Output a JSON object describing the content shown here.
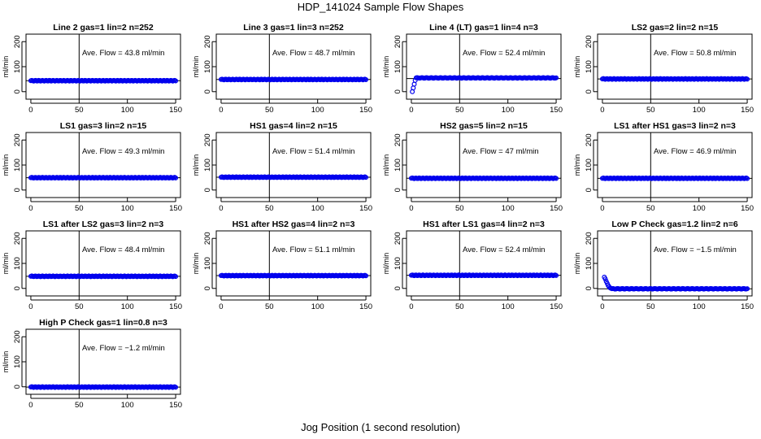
{
  "page": {
    "title": "HDP_141024  Sample Flow Shapes",
    "xlabel": "Jog Position (1 second resolution)"
  },
  "style": {
    "point_color": "#0000ee",
    "line_color": "#000000"
  },
  "chart_data": [
    {
      "type": "scatter",
      "title": "Line 2 gas=1 lin=2 n=252",
      "ylabel": "ml/min",
      "annotation": "Ave. Flow = 43.8  ml/min",
      "xlim": [
        0,
        150
      ],
      "ylim": [
        0,
        200
      ],
      "xticks": [
        0,
        50,
        100,
        150
      ],
      "yticks": [
        0,
        100,
        200
      ],
      "hline": 43.8,
      "vline": 50,
      "x": [
        0,
        150
      ],
      "y": [
        43.8,
        43.8
      ]
    },
    {
      "type": "scatter",
      "title": "Line 3 gas=1 lin=3 n=252",
      "ylabel": "ml/min",
      "annotation": "Ave. Flow = 48.7  ml/min",
      "xlim": [
        0,
        150
      ],
      "ylim": [
        0,
        200
      ],
      "xticks": [
        0,
        50,
        100,
        150
      ],
      "yticks": [
        0,
        100,
        200
      ],
      "hline": 48.7,
      "vline": 50,
      "x": [
        0,
        150
      ],
      "y": [
        48.7,
        48.7
      ]
    },
    {
      "type": "scatter",
      "title": "Line 4 (LT) gas=1 lin=4 n=3",
      "ylabel": "ml/min",
      "annotation": "Ave. Flow = 52.4  ml/min",
      "xlim": [
        0,
        150
      ],
      "ylim": [
        0,
        200
      ],
      "xticks": [
        0,
        50,
        100,
        150
      ],
      "yticks": [
        0,
        100,
        200
      ],
      "hline": 52.4,
      "vline": 50,
      "x": [
        1,
        2,
        3,
        4,
        5,
        150
      ],
      "y": [
        0,
        15,
        30,
        45,
        55,
        55
      ]
    },
    {
      "type": "scatter",
      "title": "LS2 gas=2 lin=2 n=15",
      "ylabel": "ml/min",
      "annotation": "Ave. Flow = 50.8  ml/min",
      "xlim": [
        0,
        150
      ],
      "ylim": [
        0,
        200
      ],
      "xticks": [
        0,
        50,
        100,
        150
      ],
      "yticks": [
        0,
        100,
        200
      ],
      "hline": 50.8,
      "vline": 50,
      "x": [
        0,
        150
      ],
      "y": [
        50.8,
        50.8
      ]
    },
    {
      "type": "scatter",
      "title": "LS1 gas=3 lin=2 n=15",
      "ylabel": "ml/min",
      "annotation": "Ave. Flow = 49.3  ml/min",
      "xlim": [
        0,
        150
      ],
      "ylim": [
        0,
        200
      ],
      "xticks": [
        0,
        50,
        100,
        150
      ],
      "yticks": [
        0,
        100,
        200
      ],
      "hline": 49.3,
      "vline": 50,
      "x": [
        0,
        150
      ],
      "y": [
        49.3,
        49.3
      ]
    },
    {
      "type": "scatter",
      "title": "HS1 gas=4 lin=2 n=15",
      "ylabel": "ml/min",
      "annotation": "Ave. Flow = 51.4  ml/min",
      "xlim": [
        0,
        150
      ],
      "ylim": [
        0,
        200
      ],
      "xticks": [
        0,
        50,
        100,
        150
      ],
      "yticks": [
        0,
        100,
        200
      ],
      "hline": 51.4,
      "vline": 50,
      "x": [
        0,
        150
      ],
      "y": [
        51.4,
        51.4
      ]
    },
    {
      "type": "scatter",
      "title": "HS2 gas=5 lin=2 n=15",
      "ylabel": "ml/min",
      "annotation": "Ave. Flow = 47  ml/min",
      "xlim": [
        0,
        150
      ],
      "ylim": [
        0,
        200
      ],
      "xticks": [
        0,
        50,
        100,
        150
      ],
      "yticks": [
        0,
        100,
        200
      ],
      "hline": 47,
      "vline": 50,
      "x": [
        0,
        150
      ],
      "y": [
        47,
        47
      ]
    },
    {
      "type": "scatter",
      "title": "LS1 after HS1 gas=3 lin=2 n=3",
      "ylabel": "ml/min",
      "annotation": "Ave. Flow = 46.9  ml/min",
      "xlim": [
        0,
        150
      ],
      "ylim": [
        0,
        200
      ],
      "xticks": [
        0,
        50,
        100,
        150
      ],
      "yticks": [
        0,
        100,
        200
      ],
      "hline": 46.9,
      "vline": 50,
      "x": [
        0,
        150
      ],
      "y": [
        46.9,
        46.9
      ]
    },
    {
      "type": "scatter",
      "title": "LS1 after LS2 gas=3 lin=2 n=3",
      "ylabel": "ml/min",
      "annotation": "Ave. Flow = 48.4  ml/min",
      "xlim": [
        0,
        150
      ],
      "ylim": [
        0,
        200
      ],
      "xticks": [
        0,
        50,
        100,
        150
      ],
      "yticks": [
        0,
        100,
        200
      ],
      "hline": 48.4,
      "vline": 50,
      "x": [
        0,
        150
      ],
      "y": [
        48.4,
        48.4
      ]
    },
    {
      "type": "scatter",
      "title": "HS1 after HS2 gas=4 lin=2 n=3",
      "ylabel": "ml/min",
      "annotation": "Ave. Flow = 51.1  ml/min",
      "xlim": [
        0,
        150
      ],
      "ylim": [
        0,
        200
      ],
      "xticks": [
        0,
        50,
        100,
        150
      ],
      "yticks": [
        0,
        100,
        200
      ],
      "hline": 51.1,
      "vline": 50,
      "x": [
        0,
        150
      ],
      "y": [
        51.1,
        51.1
      ]
    },
    {
      "type": "scatter",
      "title": "HS1 after LS1 gas=4 lin=2 n=3",
      "ylabel": "ml/min",
      "annotation": "Ave. Flow = 52.4  ml/min",
      "xlim": [
        0,
        150
      ],
      "ylim": [
        0,
        200
      ],
      "xticks": [
        0,
        50,
        100,
        150
      ],
      "yticks": [
        0,
        100,
        200
      ],
      "hline": 52.4,
      "vline": 50,
      "x": [
        0,
        150
      ],
      "y": [
        52.4,
        52.4
      ]
    },
    {
      "type": "scatter",
      "title": "Low P Check gas=1.2 lin=2 n=6",
      "ylabel": "ml/min",
      "annotation": "Ave. Flow = −1.5  ml/min",
      "xlim": [
        0,
        150
      ],
      "ylim": [
        0,
        200
      ],
      "xticks": [
        0,
        50,
        100,
        150
      ],
      "yticks": [
        0,
        100,
        200
      ],
      "hline": -1.5,
      "vline": 50,
      "x": [
        2,
        3,
        4,
        5,
        6,
        7,
        8,
        9,
        10,
        150
      ],
      "y": [
        45,
        38,
        28,
        20,
        12,
        6,
        2,
        0,
        -1.5,
        -1.5
      ]
    },
    {
      "type": "scatter",
      "title": "High P Check gas=1 lin=0.8 n=3",
      "ylabel": "ml/min",
      "annotation": "Ave. Flow = −1.2  ml/min",
      "xlim": [
        0,
        150
      ],
      "ylim": [
        0,
        200
      ],
      "xticks": [
        0,
        50,
        100,
        150
      ],
      "yticks": [
        0,
        100,
        200
      ],
      "hline": -1.2,
      "vline": 50,
      "x": [
        0,
        150
      ],
      "y": [
        -1.2,
        -1.2
      ]
    }
  ]
}
